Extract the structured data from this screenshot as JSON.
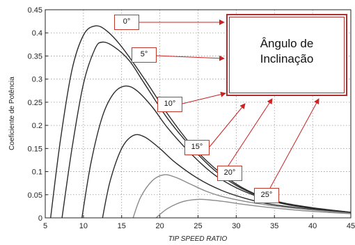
{
  "chart_data": {
    "type": "line",
    "title": "",
    "xlabel": "TIP SPEED RATIO",
    "ylabel": "Coeficiente de Potência",
    "xlim": [
      5,
      45
    ],
    "ylim": [
      0,
      0.45
    ],
    "x_ticks": [
      "5",
      "10",
      "15",
      "20",
      "25",
      "30",
      "35",
      "40",
      "45"
    ],
    "y_ticks": [
      "0",
      "0.05",
      "0.1",
      "0.15",
      "0.2",
      "0.25",
      "0.3",
      "0.35",
      "0.4",
      "0.45"
    ],
    "grid": true,
    "series": [
      {
        "name": "0°",
        "points": [
          [
            5.7,
            0
          ],
          [
            7,
            0.17
          ],
          [
            8.5,
            0.32
          ],
          [
            10,
            0.395
          ],
          [
            11.5,
            0.415
          ],
          [
            13,
            0.405
          ],
          [
            15,
            0.37
          ],
          [
            18,
            0.3
          ],
          [
            21,
            0.225
          ],
          [
            24,
            0.16
          ],
          [
            27,
            0.11
          ],
          [
            30,
            0.073
          ],
          [
            33,
            0.048
          ],
          [
            36,
            0.033
          ],
          [
            40,
            0.022
          ],
          [
            45,
            0.012
          ]
        ]
      },
      {
        "name": "5°",
        "points": [
          [
            7.2,
            0
          ],
          [
            8.5,
            0.15
          ],
          [
            10,
            0.29
          ],
          [
            11.5,
            0.365
          ],
          [
            12.5,
            0.38
          ],
          [
            14,
            0.37
          ],
          [
            16,
            0.34
          ],
          [
            18,
            0.29
          ],
          [
            21,
            0.215
          ],
          [
            24,
            0.155
          ],
          [
            27,
            0.105
          ],
          [
            30,
            0.07
          ],
          [
            33,
            0.047
          ],
          [
            36,
            0.032
          ],
          [
            40,
            0.021
          ],
          [
            45,
            0.012
          ]
        ]
      },
      {
        "name": "10°",
        "points": [
          [
            9.8,
            0
          ],
          [
            11,
            0.12
          ],
          [
            12.5,
            0.22
          ],
          [
            14,
            0.27
          ],
          [
            15.5,
            0.285
          ],
          [
            17,
            0.275
          ],
          [
            19,
            0.24
          ],
          [
            21,
            0.195
          ],
          [
            24,
            0.14
          ],
          [
            27,
            0.095
          ],
          [
            30,
            0.065
          ],
          [
            33,
            0.045
          ],
          [
            36,
            0.031
          ],
          [
            40,
            0.02
          ],
          [
            45,
            0.011
          ]
        ]
      },
      {
        "name": "15°",
        "points": [
          [
            12.5,
            0
          ],
          [
            13.5,
            0.08
          ],
          [
            15,
            0.15
          ],
          [
            16.5,
            0.178
          ],
          [
            18,
            0.175
          ],
          [
            20,
            0.15
          ],
          [
            22,
            0.12
          ],
          [
            25,
            0.085
          ],
          [
            28,
            0.06
          ],
          [
            31,
            0.043
          ],
          [
            34,
            0.031
          ],
          [
            37,
            0.024
          ],
          [
            40,
            0.018
          ],
          [
            45,
            0.01
          ]
        ]
      },
      {
        "name": "20°",
        "points": [
          [
            16.5,
            0
          ],
          [
            17.5,
            0.045
          ],
          [
            19,
            0.08
          ],
          [
            20.5,
            0.093
          ],
          [
            22,
            0.088
          ],
          [
            24,
            0.073
          ],
          [
            26,
            0.058
          ],
          [
            28,
            0.047
          ],
          [
            31,
            0.036
          ],
          [
            34,
            0.028
          ],
          [
            37,
            0.022
          ],
          [
            40,
            0.017
          ],
          [
            45,
            0.01
          ]
        ]
      },
      {
        "name": "25°",
        "points": [
          [
            19.5,
            0
          ],
          [
            21,
            0.02
          ],
          [
            23,
            0.035
          ],
          [
            25,
            0.04
          ],
          [
            27,
            0.038
          ],
          [
            29,
            0.034
          ],
          [
            31,
            0.029
          ],
          [
            34,
            0.023
          ],
          [
            37,
            0.018
          ],
          [
            40,
            0.014
          ],
          [
            45,
            0.009
          ]
        ]
      }
    ],
    "annotations": [
      "0°",
      "5°",
      "10°",
      "15°",
      "20°",
      "25°"
    ]
  },
  "legend_box": {
    "line1": "Ângulo de",
    "line2": "Inclinação"
  },
  "colors": {
    "curves": "#2b2b2b",
    "curves_light": "#8a8a8a",
    "arrows": "#cc2222",
    "grid": "#9a9a9a"
  }
}
